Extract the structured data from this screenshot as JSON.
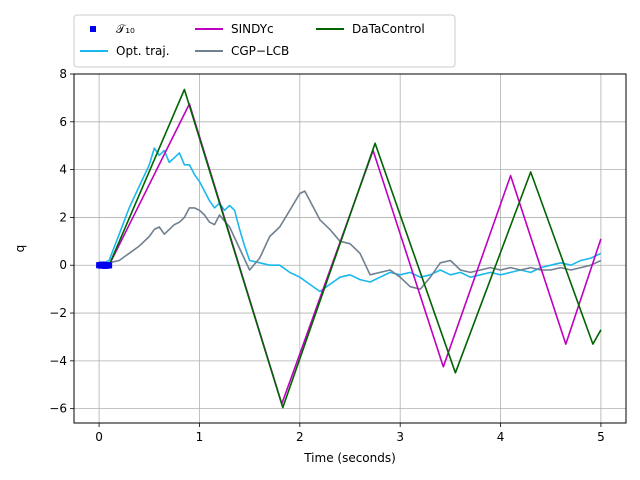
{
  "chart_data": {
    "type": "line",
    "xlabel": "Time (seconds)",
    "ylabel": "q",
    "xlim": [
      -0.25,
      5.25
    ],
    "ylim": [
      -6.6,
      8.0
    ],
    "xticks": [
      0,
      1,
      2,
      3,
      4,
      5
    ],
    "yticks": [
      -6,
      -4,
      -2,
      0,
      2,
      4,
      6,
      8
    ],
    "grid": true,
    "legend_position": "top-left-above",
    "series": [
      {
        "name": "𝒯₁₀",
        "kind": "markers",
        "color": "#0000ee",
        "x": [
          0.0,
          0.01,
          0.02,
          0.03,
          0.04,
          0.05,
          0.06,
          0.07,
          0.08,
          0.09,
          0.1
        ],
        "y": [
          0.0,
          0.01,
          -0.02,
          0.03,
          -0.01,
          0.02,
          -0.03,
          0.0,
          -0.02,
          0.01,
          -0.01
        ]
      },
      {
        "name": "Opt. traj.",
        "kind": "line",
        "color": "#1ab8ec",
        "x": [
          0.0,
          0.1,
          0.2,
          0.3,
          0.4,
          0.5,
          0.55,
          0.6,
          0.65,
          0.7,
          0.75,
          0.8,
          0.85,
          0.9,
          0.95,
          1.0,
          1.05,
          1.1,
          1.15,
          1.2,
          1.25,
          1.3,
          1.35,
          1.4,
          1.45,
          1.5,
          1.6,
          1.7,
          1.8,
          1.9,
          2.0,
          2.1,
          2.2,
          2.3,
          2.4,
          2.5,
          2.6,
          2.7,
          2.8,
          2.9,
          3.0,
          3.1,
          3.2,
          3.3,
          3.4,
          3.5,
          3.6,
          3.7,
          3.8,
          3.9,
          4.0,
          4.1,
          4.2,
          4.3,
          4.4,
          4.5,
          4.6,
          4.7,
          4.8,
          4.9,
          5.0
        ],
        "y": [
          0.0,
          0.2,
          1.3,
          2.4,
          3.3,
          4.2,
          4.9,
          4.6,
          4.8,
          4.3,
          4.5,
          4.7,
          4.2,
          4.2,
          3.8,
          3.5,
          3.1,
          2.7,
          2.4,
          2.6,
          2.3,
          2.5,
          2.3,
          1.5,
          0.8,
          0.2,
          0.1,
          0.0,
          0.0,
          -0.3,
          -0.5,
          -0.8,
          -1.1,
          -0.8,
          -0.5,
          -0.4,
          -0.6,
          -0.7,
          -0.5,
          -0.3,
          -0.4,
          -0.3,
          -0.5,
          -0.4,
          -0.2,
          -0.4,
          -0.3,
          -0.5,
          -0.4,
          -0.3,
          -0.4,
          -0.3,
          -0.2,
          -0.3,
          -0.1,
          0.0,
          0.1,
          0.0,
          0.2,
          0.3,
          0.5
        ]
      },
      {
        "name": "SINDYc",
        "kind": "line",
        "color": "#c000c0",
        "x": [
          0.1,
          0.9,
          1.82,
          2.73,
          3.43,
          4.1,
          4.65,
          5.0
        ],
        "y": [
          0.0,
          6.75,
          -5.8,
          4.8,
          -4.25,
          3.75,
          -3.3,
          1.1
        ]
      },
      {
        "name": "CGP−LCB",
        "kind": "line",
        "color": "#708090",
        "x": [
          0.0,
          0.1,
          0.2,
          0.3,
          0.4,
          0.5,
          0.55,
          0.6,
          0.65,
          0.7,
          0.75,
          0.8,
          0.85,
          0.9,
          0.95,
          1.0,
          1.05,
          1.1,
          1.15,
          1.2,
          1.3,
          1.4,
          1.5,
          1.6,
          1.7,
          1.8,
          1.9,
          2.0,
          2.05,
          2.1,
          2.2,
          2.3,
          2.4,
          2.5,
          2.6,
          2.7,
          2.8,
          2.9,
          3.0,
          3.1,
          3.2,
          3.3,
          3.4,
          3.5,
          3.6,
          3.7,
          3.8,
          3.9,
          4.0,
          4.1,
          4.2,
          4.3,
          4.4,
          4.5,
          4.6,
          4.7,
          4.8,
          4.9,
          5.0
        ],
        "y": [
          0.0,
          0.1,
          0.2,
          0.5,
          0.8,
          1.2,
          1.5,
          1.6,
          1.3,
          1.5,
          1.7,
          1.8,
          2.0,
          2.4,
          2.4,
          2.3,
          2.1,
          1.8,
          1.7,
          2.1,
          1.6,
          0.7,
          -0.2,
          0.3,
          1.2,
          1.6,
          2.3,
          3.0,
          3.1,
          2.7,
          1.9,
          1.5,
          1.0,
          0.9,
          0.5,
          -0.4,
          -0.3,
          -0.2,
          -0.5,
          -0.9,
          -1.0,
          -0.5,
          0.1,
          0.2,
          -0.2,
          -0.3,
          -0.2,
          -0.1,
          -0.2,
          -0.1,
          -0.2,
          -0.1,
          -0.2,
          -0.2,
          -0.1,
          -0.2,
          -0.1,
          0.0,
          0.2
        ]
      },
      {
        "name": "DaTaControl",
        "kind": "line",
        "color": "#006400",
        "x": [
          0.1,
          0.85,
          1.83,
          2.75,
          3.55,
          4.3,
          4.92,
          5.0
        ],
        "y": [
          0.0,
          7.35,
          -5.95,
          5.1,
          -4.5,
          3.9,
          -3.3,
          -2.7
        ]
      }
    ]
  }
}
